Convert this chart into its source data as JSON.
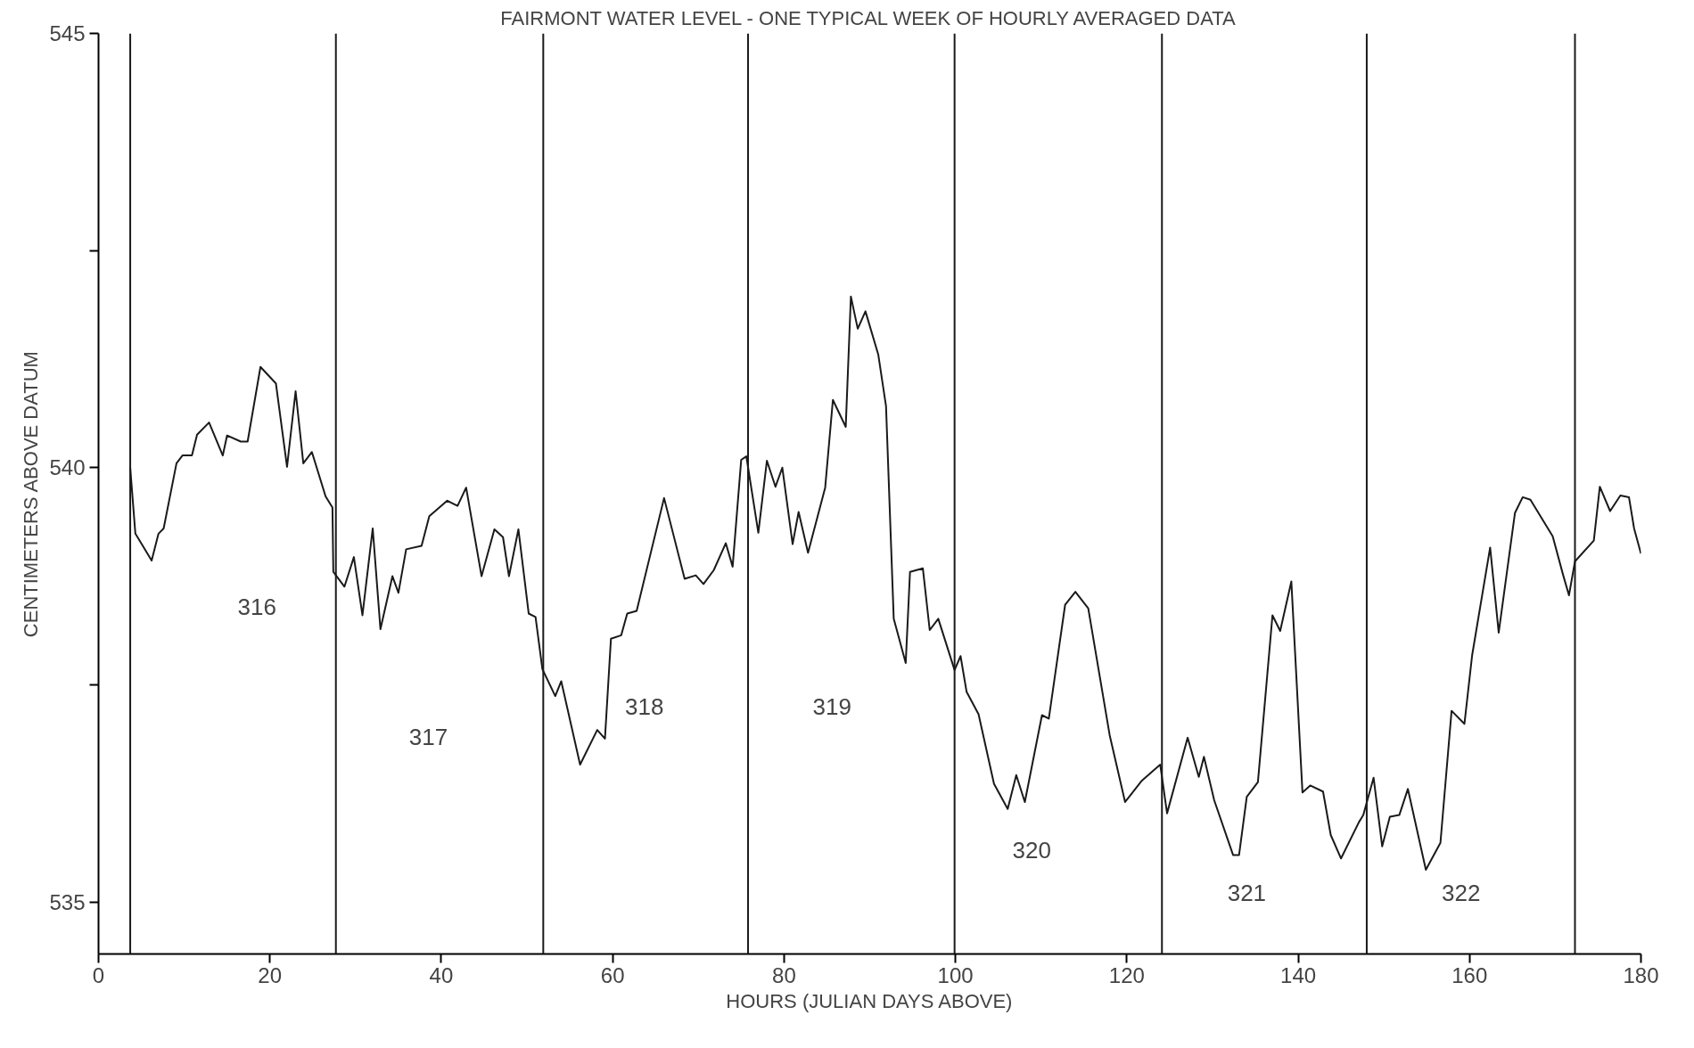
{
  "chart_data": {
    "type": "line",
    "title": "FAIRMONT WATER LEVEL - ONE TYPICAL WEEK OF HOURLY AVERAGED DATA",
    "xlabel": "HOURS (JULIAN DAYS ABOVE)",
    "ylabel": "CENTIMETERS ABOVE DATUM",
    "xlim": [
      0,
      180
    ],
    "xticks": [
      0,
      20,
      40,
      60,
      80,
      100,
      120,
      140,
      160,
      180
    ],
    "ylim": [
      534.4,
      545
    ],
    "yticks": [
      535,
      {
        "value": 537.5,
        "label": null
      },
      540,
      {
        "value": 542.5,
        "label": null
      },
      545
    ],
    "grid": false,
    "marker": "none",
    "line_style": "solid",
    "series": [
      {
        "color": "#1a1a1a",
        "x": [
          3.7,
          4.3,
          6.2,
          7.0,
          7.6,
          9.1,
          9.8,
          10.9,
          11.5,
          12.9,
          14.5,
          15.0,
          16.6,
          17.4,
          18.9,
          20.7,
          22.0,
          23.0,
          23.9,
          24.9,
          26.5,
          27.3,
          27.4,
          28.7,
          29.8,
          30.8,
          32.0,
          32.9,
          34.3,
          35.0,
          35.9,
          37.7,
          38.6,
          40.7,
          41.9,
          42.9,
          44.7,
          46.2,
          47.2,
          47.9,
          49.0,
          50.2,
          51.0,
          51.8,
          53.3,
          54.0,
          56.2,
          58.2,
          59.1,
          59.8,
          61.0,
          61.7,
          62.8,
          66.0,
          68.4,
          69.7,
          70.6,
          71.8,
          73.2,
          74.0,
          75.0,
          75.6,
          77.0,
          78.0,
          79.0,
          79.8,
          81.0,
          81.7,
          82.8,
          84.8,
          85.7,
          87.2,
          87.8,
          88.6,
          89.5,
          91.0,
          91.9,
          92.8,
          94.2,
          94.7,
          96.2,
          97.0,
          98.0,
          99.9,
          100.6,
          101.3,
          102.7,
          104.5,
          106.1,
          107.1,
          108.1,
          110.1,
          110.9,
          112.8,
          114.0,
          115.5,
          118.0,
          119.8,
          121.7,
          123.3,
          123.9,
          124.7,
          127.1,
          128.4,
          129.0,
          130.2,
          132.4,
          133.1,
          134.0,
          135.3,
          137.0,
          137.9,
          139.2,
          140.5,
          141.4,
          142.9,
          143.8,
          145.0,
          147.1,
          147.6,
          148.8,
          149.8,
          150.7,
          151.8,
          152.8,
          154.9,
          156.6,
          157.9,
          159.4,
          160.3,
          162.4,
          163.4,
          165.3,
          166.2,
          167.1,
          169.7,
          170.9,
          171.6,
          172.3,
          174.5,
          175.2,
          176.4,
          177.6,
          178.6,
          179.2,
          180.0
        ],
        "values": [
          540.0,
          539.24,
          538.93,
          539.24,
          539.3,
          540.05,
          540.14,
          540.14,
          540.38,
          540.52,
          540.14,
          540.37,
          540.3,
          540.3,
          541.16,
          540.97,
          540.01,
          540.88,
          540.05,
          540.18,
          539.67,
          539.54,
          538.8,
          538.63,
          538.97,
          538.3,
          539.3,
          538.14,
          538.75,
          538.56,
          539.06,
          539.1,
          539.44,
          539.62,
          539.56,
          539.77,
          538.75,
          539.29,
          539.2,
          538.75,
          539.29,
          538.32,
          538.28,
          537.68,
          537.37,
          537.54,
          536.58,
          536.98,
          536.88,
          538.03,
          538.07,
          538.32,
          538.35,
          539.65,
          538.72,
          538.76,
          538.66,
          538.82,
          539.13,
          538.86,
          540.09,
          540.13,
          539.25,
          540.08,
          539.78,
          540.0,
          539.12,
          539.49,
          539.02,
          539.77,
          540.78,
          540.47,
          541.97,
          541.6,
          541.8,
          541.3,
          540.71,
          538.26,
          537.75,
          538.8,
          538.84,
          538.13,
          538.26,
          537.67,
          537.83,
          537.42,
          537.16,
          536.36,
          536.07,
          536.46,
          536.15,
          537.15,
          537.11,
          538.42,
          538.57,
          538.38,
          536.92,
          536.15,
          536.39,
          536.53,
          536.58,
          536.02,
          536.89,
          536.44,
          536.67,
          536.17,
          535.54,
          535.54,
          536.21,
          536.38,
          538.3,
          538.12,
          538.69,
          536.26,
          536.34,
          536.27,
          535.77,
          535.5,
          535.92,
          536.0,
          536.43,
          535.64,
          535.98,
          536.0,
          536.3,
          535.37,
          535.68,
          537.2,
          537.05,
          537.84,
          539.08,
          538.1,
          539.48,
          539.66,
          539.63,
          539.21,
          538.77,
          538.53,
          538.92,
          539.16,
          539.78,
          539.5,
          539.68,
          539.66,
          539.3,
          539.01
        ]
      }
    ],
    "ref_lines": [
      {
        "axis": "x",
        "value": 3.7,
        "label": null
      },
      {
        "axis": "x",
        "value": 27.7,
        "label": null
      },
      {
        "axis": "x",
        "value": 51.9,
        "label": null
      },
      {
        "axis": "x",
        "value": 75.8,
        "label": null
      },
      {
        "axis": "x",
        "value": 99.9,
        "label": null
      },
      {
        "axis": "x",
        "value": 124.1,
        "label": null
      },
      {
        "axis": "x",
        "value": 148.0,
        "label": null
      },
      {
        "axis": "x",
        "value": 172.3,
        "label": null
      }
    ],
    "annotations": [
      {
        "text": "316",
        "x": 18.5,
        "y": 538.4
      },
      {
        "text": "317",
        "x": 38.5,
        "y": 536.9
      },
      {
        "text": "318",
        "x": 63.7,
        "y": 537.25
      },
      {
        "text": "319",
        "x": 85.6,
        "y": 537.25
      },
      {
        "text": "320",
        "x": 108.9,
        "y": 535.6
      },
      {
        "text": "321",
        "x": 134.0,
        "y": 535.1
      },
      {
        "text": "322",
        "x": 159.0,
        "y": 535.1
      }
    ]
  }
}
